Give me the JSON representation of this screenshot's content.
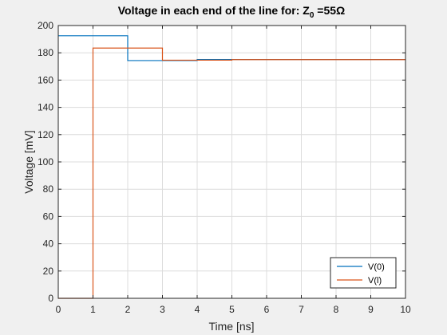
{
  "chart_data": {
    "type": "line",
    "title": "Voltage in each end of the line for: Z",
    "title_subscript": "0",
    "title_suffix": " =55Ω",
    "xlabel": "Time [ns]",
    "ylabel": "Voltage [mV]",
    "xlim": [
      0,
      10
    ],
    "ylim": [
      0,
      200
    ],
    "xticks": [
      0,
      1,
      2,
      3,
      4,
      5,
      6,
      7,
      8,
      9,
      10
    ],
    "yticks": [
      0,
      20,
      40,
      60,
      80,
      100,
      120,
      140,
      160,
      180,
      200
    ],
    "grid": true,
    "legend_position": "bottom-right",
    "series": [
      {
        "name": "V(0)",
        "color": "#0072bd",
        "step": true,
        "points": [
          [
            0,
            192.5
          ],
          [
            2,
            192.5
          ],
          [
            2,
            174.3
          ],
          [
            4,
            174.3
          ],
          [
            4,
            175.1
          ],
          [
            10,
            175.1
          ]
        ]
      },
      {
        "name": "V(l)",
        "color": "#d95319",
        "step": true,
        "points": [
          [
            0,
            0
          ],
          [
            1,
            0
          ],
          [
            1,
            183.5
          ],
          [
            3,
            183.5
          ],
          [
            3,
            174.6
          ],
          [
            5,
            174.6
          ],
          [
            5,
            175.0
          ],
          [
            10,
            175.0
          ]
        ]
      }
    ]
  }
}
